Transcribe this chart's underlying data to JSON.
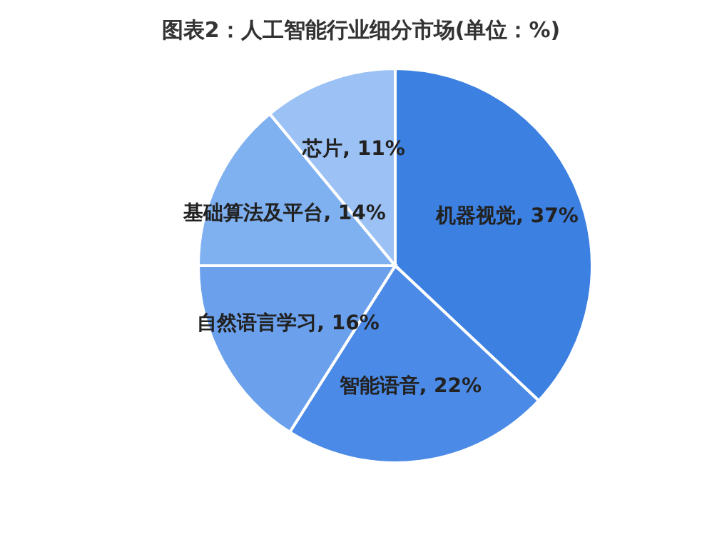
{
  "chart_data": {
    "type": "pie",
    "title": "图表2：人工智能行业细分市场(单位：%)",
    "categories": [
      "机器视觉",
      "智能语音",
      "自然语言学习",
      "基础算法及平台",
      "芯片"
    ],
    "values": [
      37,
      22,
      16,
      14,
      11
    ],
    "value_labels": [
      "37%",
      "22%",
      "16%",
      "14%",
      "11%"
    ],
    "colors": [
      "#3c80e2",
      "#4b8ae6",
      "#6aa0ec",
      "#7fb0f0",
      "#9cc2f5"
    ],
    "legend": false
  }
}
